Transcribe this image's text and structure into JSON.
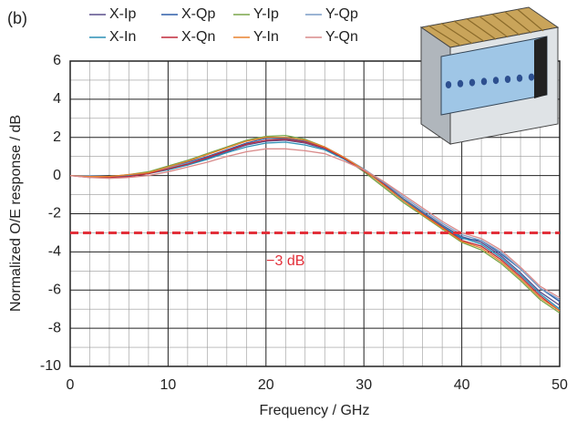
{
  "chart_data": {
    "type": "line",
    "panel_label": "(b)",
    "xlabel": "Frequency / GHz",
    "ylabel": "Normalized O/E response / dB",
    "x": [
      0,
      2,
      4,
      6,
      8,
      10,
      12,
      14,
      16,
      18,
      20,
      22,
      24,
      26,
      28,
      30,
      32,
      34,
      36,
      38,
      40,
      42,
      44,
      46,
      48,
      50
    ],
    "series": [
      {
        "name": "X-Ip",
        "color": "#5a4e8c",
        "values": [
          0,
          -0.05,
          -0.05,
          0,
          0.1,
          0.35,
          0.6,
          0.9,
          1.25,
          1.6,
          1.8,
          1.85,
          1.7,
          1.4,
          0.9,
          0.3,
          -0.4,
          -1.2,
          -1.9,
          -2.6,
          -3.2,
          -3.5,
          -4.2,
          -5.1,
          -6.1,
          -6.8
        ]
      },
      {
        "name": "X-Qp",
        "color": "#2e5fa8",
        "values": [
          0,
          -0.05,
          -0.1,
          0,
          0.15,
          0.4,
          0.7,
          1.0,
          1.35,
          1.7,
          1.95,
          1.95,
          1.8,
          1.5,
          0.95,
          0.3,
          -0.5,
          -1.3,
          -2.0,
          -2.7,
          -3.3,
          -3.4,
          -4.1,
          -4.9,
          -5.9,
          -6.6
        ]
      },
      {
        "name": "Y-Ip",
        "color": "#7aa64a",
        "values": [
          0,
          -0.05,
          -0.05,
          0.05,
          0.2,
          0.5,
          0.8,
          1.15,
          1.5,
          1.85,
          2.05,
          2.1,
          1.9,
          1.5,
          0.9,
          0.2,
          -0.6,
          -1.4,
          -2.1,
          -2.8,
          -3.5,
          -3.9,
          -4.6,
          -5.5,
          -6.5,
          -7.2
        ]
      },
      {
        "name": "Y-Qp",
        "color": "#7a9cc6",
        "values": [
          0,
          0,
          -0.05,
          0,
          0.1,
          0.4,
          0.65,
          0.95,
          1.3,
          1.65,
          1.85,
          1.9,
          1.75,
          1.45,
          0.95,
          0.35,
          -0.35,
          -1.1,
          -1.8,
          -2.5,
          -3.1,
          -3.4,
          -4.0,
          -4.9,
          -5.9,
          -6.5
        ]
      },
      {
        "name": "X-In",
        "color": "#2c8fb5",
        "values": [
          0,
          -0.05,
          -0.05,
          0,
          0.1,
          0.3,
          0.55,
          0.85,
          1.2,
          1.5,
          1.7,
          1.75,
          1.6,
          1.35,
          0.85,
          0.25,
          -0.45,
          -1.25,
          -1.95,
          -2.65,
          -3.25,
          -3.6,
          -4.3,
          -5.2,
          -6.2,
          -7.0
        ]
      },
      {
        "name": "X-Qn",
        "color": "#c0283a",
        "values": [
          0,
          -0.1,
          -0.1,
          -0.05,
          0.1,
          0.35,
          0.6,
          0.95,
          1.3,
          1.65,
          1.85,
          1.9,
          1.75,
          1.45,
          0.9,
          0.25,
          -0.45,
          -1.3,
          -2.0,
          -2.7,
          -3.4,
          -3.7,
          -4.4,
          -5.3,
          -6.3,
          -7.1
        ]
      },
      {
        "name": "Y-In",
        "color": "#e8822e",
        "values": [
          0,
          -0.05,
          -0.05,
          0.05,
          0.15,
          0.45,
          0.75,
          1.1,
          1.45,
          1.8,
          2.0,
          2.0,
          1.85,
          1.5,
          0.95,
          0.3,
          -0.5,
          -1.3,
          -2.05,
          -2.75,
          -3.45,
          -3.8,
          -4.5,
          -5.4,
          -6.4,
          -7.1
        ]
      },
      {
        "name": "Y-Qn",
        "color": "#d98a8a",
        "values": [
          0,
          -0.1,
          -0.15,
          -0.1,
          0,
          0.2,
          0.45,
          0.7,
          1.0,
          1.25,
          1.4,
          1.4,
          1.3,
          1.15,
          0.75,
          0.3,
          -0.3,
          -1.0,
          -1.7,
          -2.4,
          -3.0,
          -3.3,
          -3.9,
          -4.8,
          -5.8,
          -6.4
        ]
      }
    ],
    "xlim": [
      0,
      50
    ],
    "ylim": [
      -10,
      6
    ],
    "xticks": [
      0,
      10,
      20,
      30,
      40,
      50
    ],
    "yticks": [
      -10,
      -8,
      -6,
      -4,
      -2,
      0,
      2,
      4,
      6
    ],
    "xminorticks": [
      2,
      4,
      6,
      8,
      12,
      14,
      16,
      18,
      22,
      24,
      26,
      28,
      32,
      34,
      36,
      38,
      42,
      44,
      46,
      48
    ],
    "yminorticks": [
      -9,
      -7,
      -5,
      -3,
      -1,
      1,
      3,
      5
    ],
    "grid": true,
    "hline": {
      "value": -3,
      "label": "−3 dB",
      "color": "#e2303a"
    }
  }
}
